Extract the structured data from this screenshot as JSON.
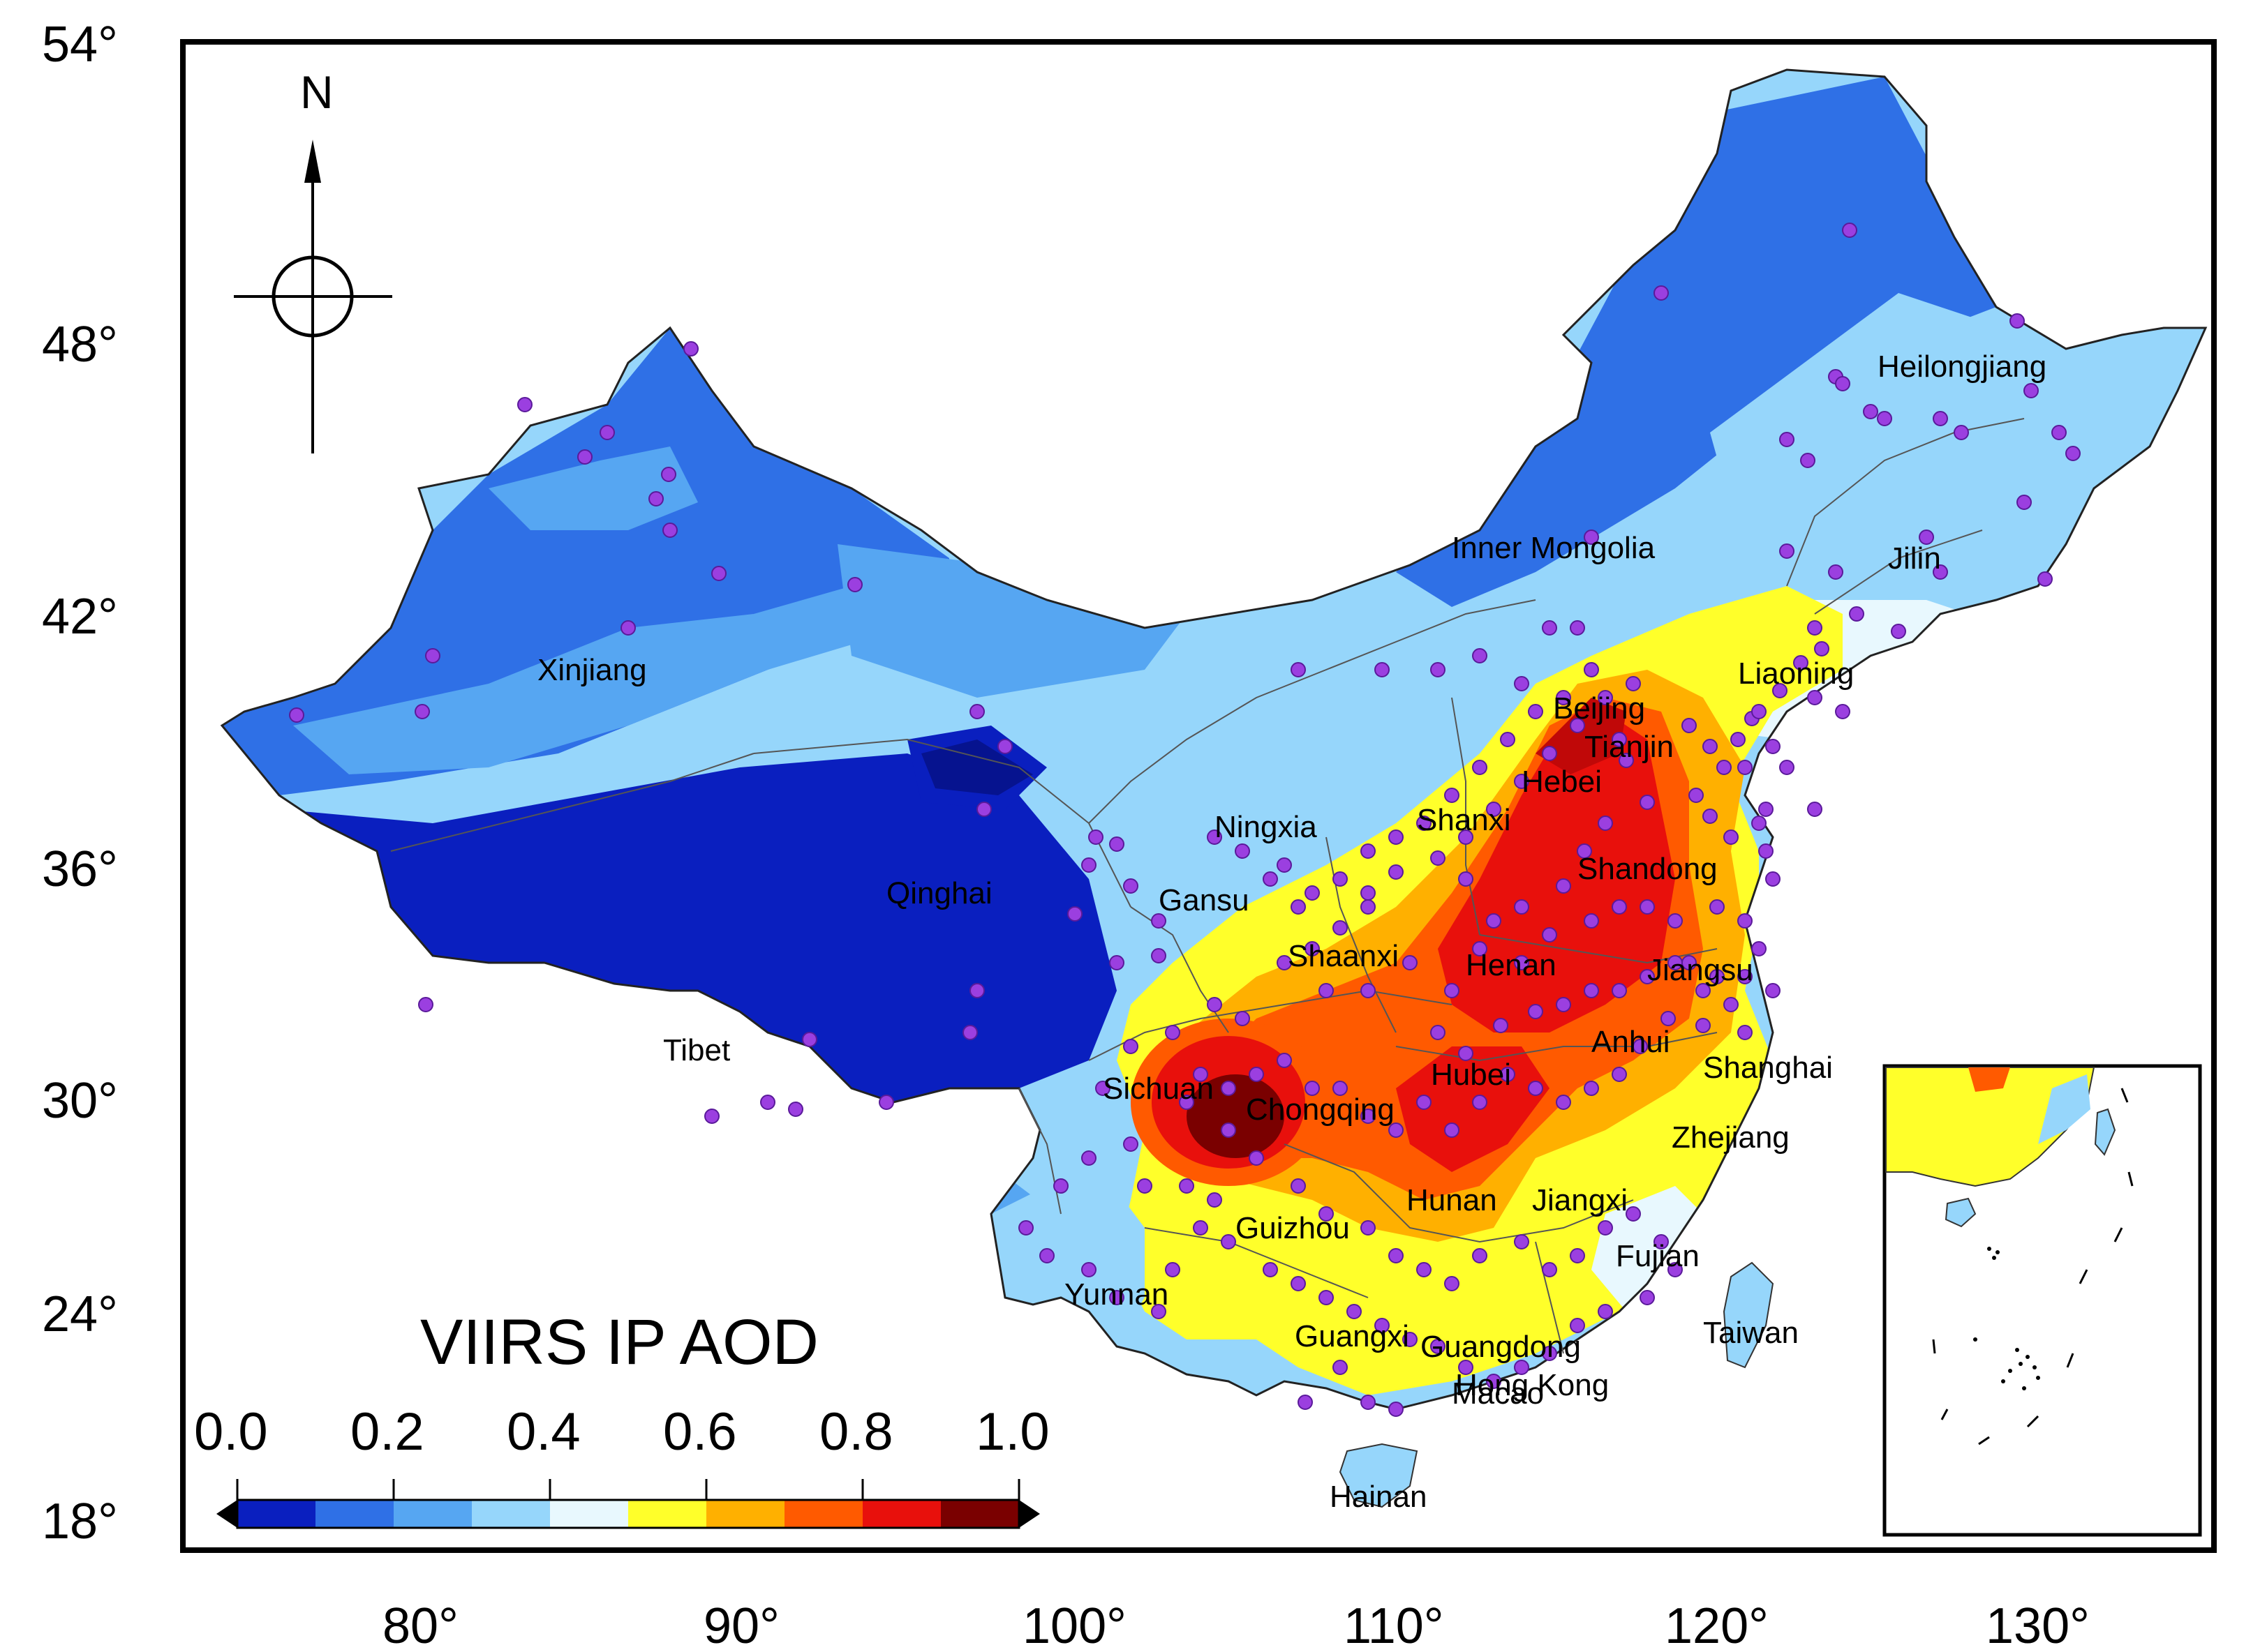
{
  "map": {
    "title": "VIIRS IP AOD",
    "north_label": "N",
    "y_axis_labels": [
      "54°",
      "48°",
      "42°",
      "36°",
      "30°",
      "24°",
      "18°"
    ],
    "x_axis_labels": [
      "80°",
      "90°",
      "100°",
      "110°",
      "120°",
      "130°"
    ],
    "colorbar": {
      "tick_labels": [
        "0.0",
        "0.2",
        "0.4",
        "0.6",
        "0.8",
        "1.0"
      ],
      "min": 0.0,
      "max": 1.0,
      "colors": [
        "#0a1fbf",
        "#2f70e6",
        "#56a6f2",
        "#96d6fb",
        "#e8f8fe",
        "#ffff2a",
        "#ffb000",
        "#ff5a00",
        "#e8100c",
        "#7a0000"
      ]
    },
    "provinces": [
      {
        "id": "xinjiang",
        "label": "Xinjiang"
      },
      {
        "id": "tibet",
        "label": "Tibet"
      },
      {
        "id": "qinghai",
        "label": "Qinghai"
      },
      {
        "id": "gansu",
        "label": "Gansu"
      },
      {
        "id": "ningxia",
        "label": "Ningxia"
      },
      {
        "id": "inner-mongolia",
        "label": "Inner Mongolia"
      },
      {
        "id": "heilongjiang",
        "label": "Heilongjiang"
      },
      {
        "id": "jilin",
        "label": "Jilin"
      },
      {
        "id": "liaoning",
        "label": "Liaoning"
      },
      {
        "id": "beijing",
        "label": "Beijing"
      },
      {
        "id": "tianjin",
        "label": "Tianjin"
      },
      {
        "id": "hebei",
        "label": "Hebei"
      },
      {
        "id": "shanxi",
        "label": "Shanxi"
      },
      {
        "id": "shandong",
        "label": "Shandong"
      },
      {
        "id": "shaanxi",
        "label": "Shaanxi"
      },
      {
        "id": "henan",
        "label": "Henan"
      },
      {
        "id": "jiangsu",
        "label": "Jiangsu"
      },
      {
        "id": "anhui",
        "label": "Anhui"
      },
      {
        "id": "shanghai",
        "label": "Shanghai"
      },
      {
        "id": "sichuan",
        "label": "Sichuan"
      },
      {
        "id": "chongqing",
        "label": "Chongqing"
      },
      {
        "id": "hubei",
        "label": "Hubei"
      },
      {
        "id": "zhejiang",
        "label": "Zhejiang"
      },
      {
        "id": "hunan",
        "label": "Hunan"
      },
      {
        "id": "jiangxi",
        "label": "Jiangxi"
      },
      {
        "id": "guizhou",
        "label": "Guizhou"
      },
      {
        "id": "fujian",
        "label": "Fujian"
      },
      {
        "id": "yunnan",
        "label": "Yunnan"
      },
      {
        "id": "guangxi",
        "label": "Guangxi"
      },
      {
        "id": "guangdong",
        "label": "Guangdong"
      },
      {
        "id": "taiwan",
        "label": "Taiwan"
      },
      {
        "id": "hong-kong",
        "label": "Hong Kong"
      },
      {
        "id": "macao",
        "label": "Macao"
      },
      {
        "id": "hainan",
        "label": "Hainan"
      }
    ],
    "colors": {
      "frame": "#000000",
      "station_marker": "#9b3fe0",
      "station_outline": "#5a1a9a",
      "boundary": "#333333"
    }
  }
}
